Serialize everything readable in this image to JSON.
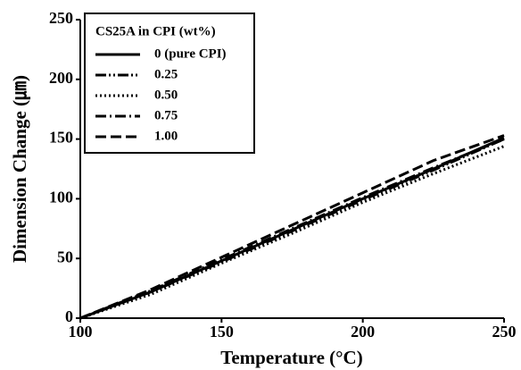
{
  "chart_data": {
    "type": "line",
    "x_label": "Temperature (°C)",
    "y_label": "Dimension Change (㎛)",
    "legend_title": "CS25A in CPI (wt%)",
    "legend_position": "upper-left",
    "x": [
      100,
      125,
      150,
      175,
      200,
      225,
      250
    ],
    "series": [
      {
        "name": "0 (pure CPI)",
        "color": "#000000",
        "style": "solid",
        "values": [
          0,
          22,
          48,
          74,
          100,
          125,
          151
        ]
      },
      {
        "name": "0.25",
        "color": "#000000",
        "style": "dash-dot-dot",
        "values": [
          0,
          22,
          47,
          73,
          99,
          124,
          150
        ]
      },
      {
        "name": "0.50",
        "color": "#000000",
        "style": "dotted",
        "values": [
          0,
          20,
          46,
          71,
          97,
          121,
          144
        ]
      },
      {
        "name": "0.75",
        "color": "#000000",
        "style": "dash-dot",
        "values": [
          0,
          23,
          49,
          75,
          101,
          126,
          150
        ]
      },
      {
        "name": "1.00",
        "color": "#000000",
        "style": "dashed",
        "values": [
          0,
          24,
          51,
          78,
          105,
          132,
          153
        ]
      }
    ],
    "xlim": [
      100,
      250
    ],
    "xticks": [
      100,
      150,
      200,
      250
    ],
    "ylim": [
      0,
      250
    ],
    "yticks": [
      0,
      50,
      100,
      150,
      200,
      250
    ],
    "grid": false
  }
}
